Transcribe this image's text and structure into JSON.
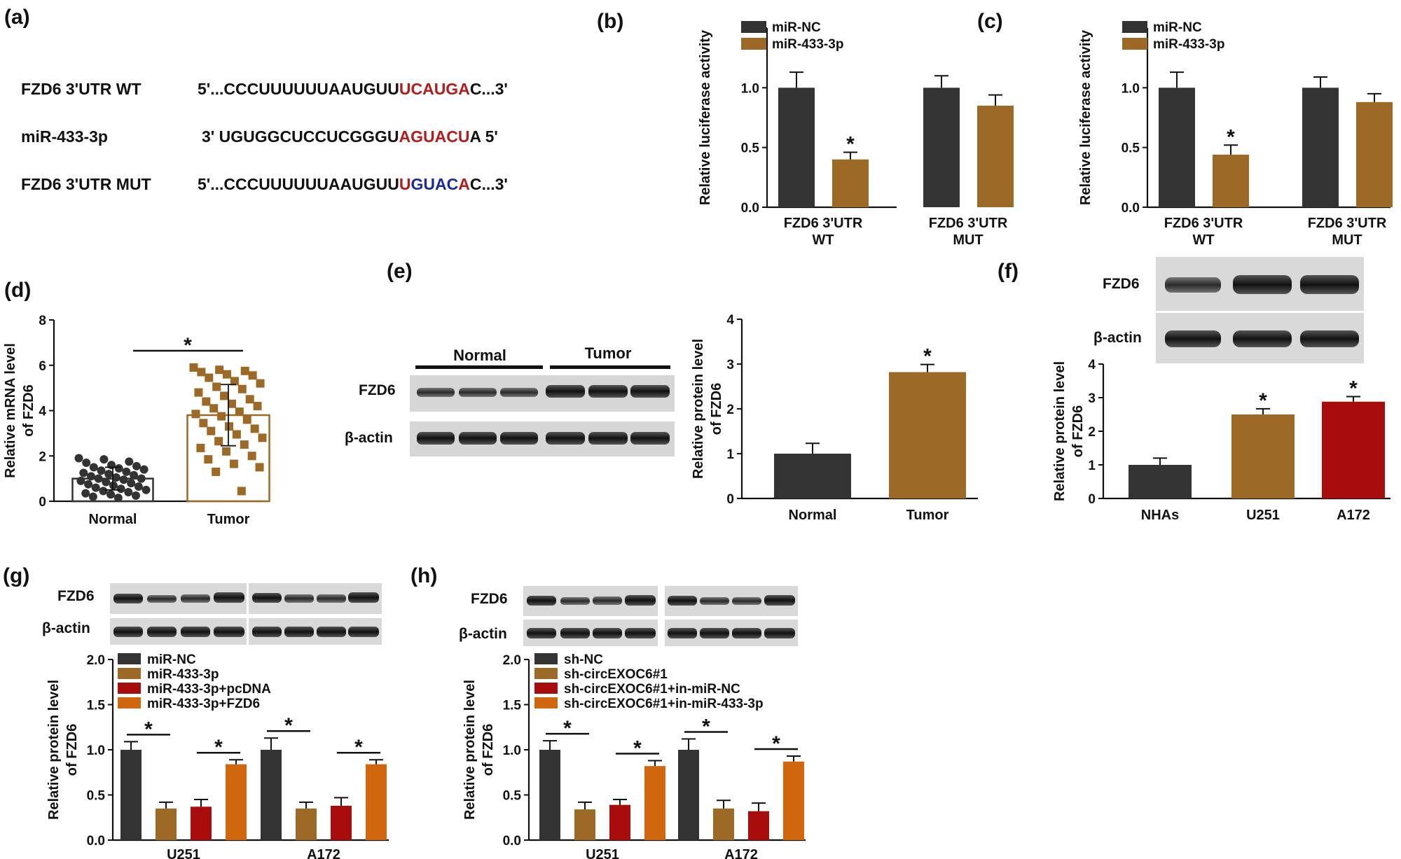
{
  "colors": {
    "dark": "#333333",
    "brown": "#9c6a26",
    "red": "#a80d0d",
    "orange": "#d0670f",
    "seq_red": "#b51b1b",
    "seq_blue": "#1a2a9c"
  },
  "panel_a": {
    "letter": "(a)",
    "rows": [
      {
        "label": "FZD6 3'UTR WT",
        "prefix": "5'...CCCUUUUUUAAUGUU",
        "site": "UCAUGA",
        "site_style": "red",
        "suffix": "C...3'"
      },
      {
        "label": "miR-433-3p",
        "prefix": "3' UGUGGCUCCUCGGGU",
        "site": "AGUACU",
        "site_style": "red",
        "suffix": "A 5'"
      },
      {
        "label": "FZD6 3'UTR MUT",
        "prefix": "5'...CCCUUUUUUAAUGUU",
        "site_mut": [
          "U",
          "GUAC",
          "A"
        ],
        "suffix": "C...3'"
      }
    ]
  },
  "blots": {
    "e": {
      "letter": "(e)",
      "group_labels": [
        "Normal",
        "Tumor"
      ],
      "rows": [
        "FZD6",
        "β-actin"
      ]
    },
    "f": {
      "letter": "(f)",
      "rows": [
        "FZD6",
        "β-actin"
      ]
    },
    "g": {
      "letter": "(g)",
      "rows": [
        "FZD6",
        "β-actin"
      ]
    },
    "h": {
      "letter": "(h)",
      "rows": [
        "FZD6",
        "β-actin"
      ]
    }
  },
  "chart_data": [
    {
      "id": "b",
      "letter": "(b)",
      "type": "bar",
      "categories": [
        [
          "FZD6 3'UTR",
          "WT"
        ],
        [
          "FZD6 3'UTR",
          "MUT"
        ]
      ],
      "series": [
        {
          "name": "miR-NC",
          "color": "#333333",
          "values": [
            1.0,
            1.0
          ],
          "errors": [
            0.13,
            0.1
          ]
        },
        {
          "name": "miR-433-3p",
          "color": "#9c6a26",
          "values": [
            0.4,
            0.85
          ],
          "errors": [
            0.06,
            0.09
          ]
        }
      ],
      "sig": [
        [
          1,
          0
        ]
      ],
      "ylabel": "Relative luciferase activity",
      "ylim": [
        0,
        1.5
      ],
      "yticks": [
        "0.0",
        "0.5",
        "1.0",
        "1.5"
      ],
      "legend": "top-left"
    },
    {
      "id": "c",
      "letter": "(c)",
      "type": "bar",
      "categories": [
        [
          "FZD6 3'UTR",
          "WT"
        ],
        [
          "FZD6 3'UTR",
          "MUT"
        ]
      ],
      "series": [
        {
          "name": "miR-NC",
          "color": "#333333",
          "values": [
            1.0,
            1.0
          ],
          "errors": [
            0.13,
            0.09
          ]
        },
        {
          "name": "miR-433-3p",
          "color": "#9c6a26",
          "values": [
            0.44,
            0.88
          ],
          "errors": [
            0.08,
            0.07
          ]
        }
      ],
      "sig": [
        [
          1,
          0
        ]
      ],
      "ylabel": "Relative luciferase activity",
      "ylim": [
        0,
        1.5
      ],
      "yticks": [
        "0.0",
        "0.5",
        "1.0",
        "1.5"
      ],
      "legend": "top-left"
    },
    {
      "id": "d",
      "letter": "(d)",
      "type": "scatter",
      "categories": [
        "Normal",
        "Tumor"
      ],
      "series": [
        {
          "name": "Normal",
          "color": "#333333",
          "mean": 1.0,
          "sd": 0.5,
          "points": [
            1.9,
            1.85,
            1.75,
            1.7,
            1.6,
            1.55,
            1.5,
            1.45,
            1.4,
            1.35,
            1.3,
            1.25,
            1.2,
            1.15,
            1.1,
            1.05,
            1.0,
            1.0,
            0.95,
            0.9,
            0.85,
            0.8,
            0.75,
            0.7,
            0.65,
            0.6,
            0.55,
            0.5,
            0.45,
            0.4,
            0.35,
            0.3,
            0.25,
            0.2,
            0.15
          ]
        },
        {
          "name": "Tumor",
          "color": "#9c6a26",
          "mean": 3.8,
          "sd": 1.35,
          "points": [
            5.9,
            5.8,
            5.75,
            5.7,
            5.6,
            5.55,
            5.45,
            5.3,
            5.2,
            5.05,
            4.95,
            4.8,
            4.65,
            4.5,
            4.4,
            4.3,
            4.2,
            4.1,
            3.95,
            3.85,
            3.75,
            3.6,
            3.45,
            3.3,
            3.2,
            3.1,
            2.95,
            2.8,
            2.65,
            2.5,
            2.35,
            2.2,
            2.0,
            1.85,
            1.65,
            1.5,
            1.3,
            0.45
          ]
        }
      ],
      "significance_label": "*",
      "ylabel": [
        "Relative mRNA level",
        "of FZD6"
      ],
      "ylim": [
        0,
        8
      ],
      "yticks": [
        "0",
        "2",
        "4",
        "6",
        "8"
      ]
    },
    {
      "id": "e",
      "type": "bar",
      "categories": [
        "Normal",
        "Tumor"
      ],
      "series": [
        {
          "values": [
            1.0,
            2.82
          ],
          "errors": [
            0.23,
            0.17
          ],
          "colors": [
            "#333333",
            "#9c6a26"
          ]
        }
      ],
      "sig": [
        1
      ],
      "ylabel": [
        "Relative protein level",
        "of FZD6"
      ],
      "ylim": [
        0,
        4
      ],
      "yticks": [
        "0",
        "1",
        "2",
        "3",
        "4"
      ]
    },
    {
      "id": "f",
      "type": "bar",
      "categories": [
        "NHAs",
        "U251",
        "A172"
      ],
      "series": [
        {
          "values": [
            1.0,
            2.5,
            2.88
          ],
          "errors": [
            0.2,
            0.17,
            0.15
          ],
          "colors": [
            "#333333",
            "#9c6a26",
            "#a80d0d"
          ]
        }
      ],
      "sig": [
        1,
        2
      ],
      "ylabel": [
        "Relative protein level",
        "of FZD6"
      ],
      "ylim": [
        0,
        4
      ],
      "yticks": [
        "0",
        "1",
        "2",
        "3",
        "4"
      ]
    },
    {
      "id": "g",
      "type": "bar",
      "categories": [
        "U251",
        "A172"
      ],
      "series": [
        {
          "name": "miR-NC",
          "color": "#333333",
          "values": [
            1.0,
            1.0
          ],
          "errors": [
            0.09,
            0.13
          ]
        },
        {
          "name": "miR-433-3p",
          "color": "#9c6a26",
          "values": [
            0.35,
            0.35
          ],
          "errors": [
            0.07,
            0.07
          ]
        },
        {
          "name": "miR-433-3p+pcDNA",
          "color": "#a80d0d",
          "values": [
            0.37,
            0.38
          ],
          "errors": [
            0.08,
            0.09
          ]
        },
        {
          "name": "miR-433-3p+FZD6",
          "color": "#d0670f",
          "values": [
            0.84,
            0.84
          ],
          "errors": [
            0.05,
            0.05
          ]
        }
      ],
      "sig_pairs": [
        [
          0,
          1
        ],
        [
          2,
          3
        ]
      ],
      "ylabel": [
        "Relative protein level",
        "of FZD6"
      ],
      "ylim": [
        0,
        2.0
      ],
      "yticks": [
        "0.0",
        "0.5",
        "1.0",
        "1.5",
        "2.0"
      ],
      "legend": "top-left"
    },
    {
      "id": "h",
      "type": "bar",
      "categories": [
        "U251",
        "A172"
      ],
      "series": [
        {
          "name": "sh-NC",
          "color": "#333333",
          "values": [
            1.0,
            1.0
          ],
          "errors": [
            0.1,
            0.12
          ]
        },
        {
          "name": "sh-circEXOC6#1",
          "color": "#9c6a26",
          "values": [
            0.34,
            0.35
          ],
          "errors": [
            0.08,
            0.09
          ]
        },
        {
          "name": "sh-circEXOC6#1+in-miR-NC",
          "color": "#a80d0d",
          "values": [
            0.39,
            0.32
          ],
          "errors": [
            0.06,
            0.09
          ]
        },
        {
          "name": "sh-circEXOC6#1+in-miR-433-3p",
          "color": "#d0670f",
          "values": [
            0.82,
            0.87
          ],
          "errors": [
            0.06,
            0.06
          ]
        }
      ],
      "sig_pairs": [
        [
          0,
          1
        ],
        [
          2,
          3
        ]
      ],
      "ylabel": [
        "Relative protein level",
        "of FZD6"
      ],
      "ylim": [
        0,
        2.0
      ],
      "yticks": [
        "0.0",
        "0.5",
        "1.0",
        "1.5",
        "2.0"
      ],
      "legend": "top-left"
    }
  ]
}
